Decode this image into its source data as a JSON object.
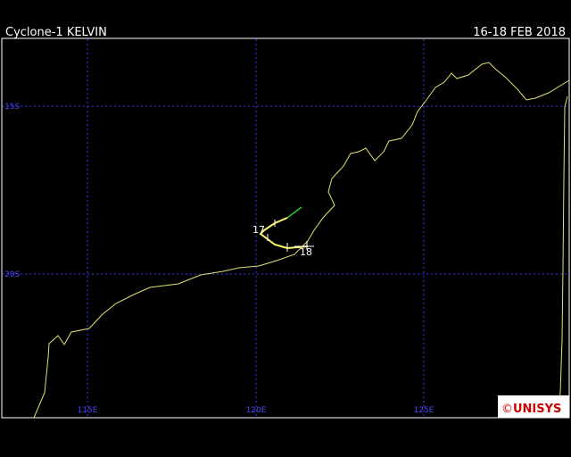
{
  "header": {
    "title": "Cyclone-1 KELVIN",
    "dates": "16-18 FEB 2018"
  },
  "grid": {
    "latitudes": [
      "15S",
      "20S"
    ],
    "longitudes": [
      "115E",
      "120E",
      "125E"
    ]
  },
  "track": {
    "labels": [
      "17",
      "18"
    ]
  },
  "logo": {
    "copyright": "©",
    "name": "UNISYS"
  }
}
